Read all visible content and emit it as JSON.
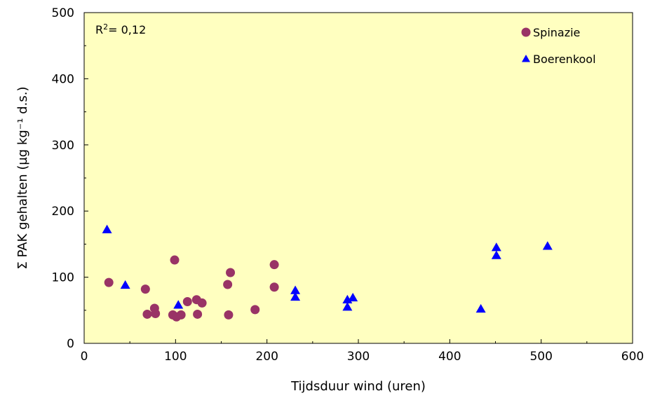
{
  "chart_data": {
    "type": "scatter",
    "title": "",
    "xlabel": "Tijdsduur wind (uren)",
    "ylabel": "Σ PAK gehalten (µg kg⁻¹ d.s.)",
    "xlim": [
      0,
      600
    ],
    "ylim": [
      0,
      500
    ],
    "x_ticks": [
      "0",
      "100",
      "200",
      "300",
      "400",
      "500",
      "600"
    ],
    "y_ticks": [
      "0",
      "100",
      "200",
      "300",
      "400",
      "500"
    ],
    "grid": false,
    "plot_background": "#FFFFC0",
    "legend_position": "top-right",
    "annotation": {
      "prefix": "R",
      "sup": "2",
      "text": "= 0,12"
    },
    "series": [
      {
        "name": "Spinazie",
        "marker": "circle",
        "color": "#993366",
        "points": [
          [
            27,
            92
          ],
          [
            67,
            82
          ],
          [
            69,
            44
          ],
          [
            77,
            53
          ],
          [
            78,
            45
          ],
          [
            97,
            43
          ],
          [
            99,
            126
          ],
          [
            101,
            40
          ],
          [
            106,
            43
          ],
          [
            113,
            63
          ],
          [
            123,
            66
          ],
          [
            124,
            44
          ],
          [
            129,
            61
          ],
          [
            157,
            89
          ],
          [
            158,
            43
          ],
          [
            160,
            107
          ],
          [
            187,
            51
          ],
          [
            208,
            119
          ],
          [
            208,
            85
          ]
        ]
      },
      {
        "name": "Boerenkool",
        "marker": "triangle",
        "color": "#0000FF",
        "points": [
          [
            25,
            172
          ],
          [
            45,
            88
          ],
          [
            103,
            58
          ],
          [
            231,
            80
          ],
          [
            231,
            70
          ],
          [
            288,
            66
          ],
          [
            288,
            55
          ],
          [
            294,
            69
          ],
          [
            434,
            52
          ],
          [
            451,
            145
          ],
          [
            451,
            133
          ],
          [
            507,
            147
          ]
        ]
      }
    ]
  }
}
